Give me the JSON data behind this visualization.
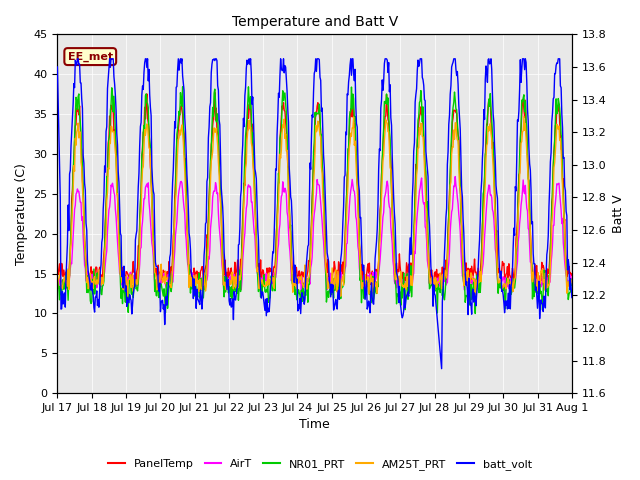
{
  "title": "Temperature and Batt V",
  "xlabel": "Time",
  "ylabel_left": "Temperature (C)",
  "ylabel_right": "Batt V",
  "annotation": "EE_met",
  "ylim_left": [
    0,
    45
  ],
  "ylim_right": [
    11.6,
    13.8
  ],
  "yticks_left": [
    0,
    5,
    10,
    15,
    20,
    25,
    30,
    35,
    40,
    45
  ],
  "yticks_right": [
    11.6,
    11.8,
    12.0,
    12.2,
    12.4,
    12.6,
    12.8,
    13.0,
    13.2,
    13.4,
    13.6,
    13.8
  ],
  "xtick_labels": [
    "Jul 17",
    "Jul 18",
    "Jul 19",
    "Jul 20",
    "Jul 21",
    "Jul 22",
    "Jul 23",
    "Jul 24",
    "Jul 25",
    "Jul 26",
    "Jul 27",
    "Jul 28",
    "Jul 29",
    "Jul 30",
    "Jul 31",
    "Aug 1"
  ],
  "n_days": 15,
  "background_color": "#e8e8e8",
  "line_colors": {
    "PanelTemp": "#ff0000",
    "AirT": "#ff00ff",
    "NR01_PRT": "#00cc00",
    "AM25T_PRT": "#ffaa00",
    "batt_volt": "#0000ff"
  },
  "legend_labels": [
    "PanelTemp",
    "AirT",
    "NR01_PRT",
    "AM25T_PRT",
    "batt_volt"
  ]
}
